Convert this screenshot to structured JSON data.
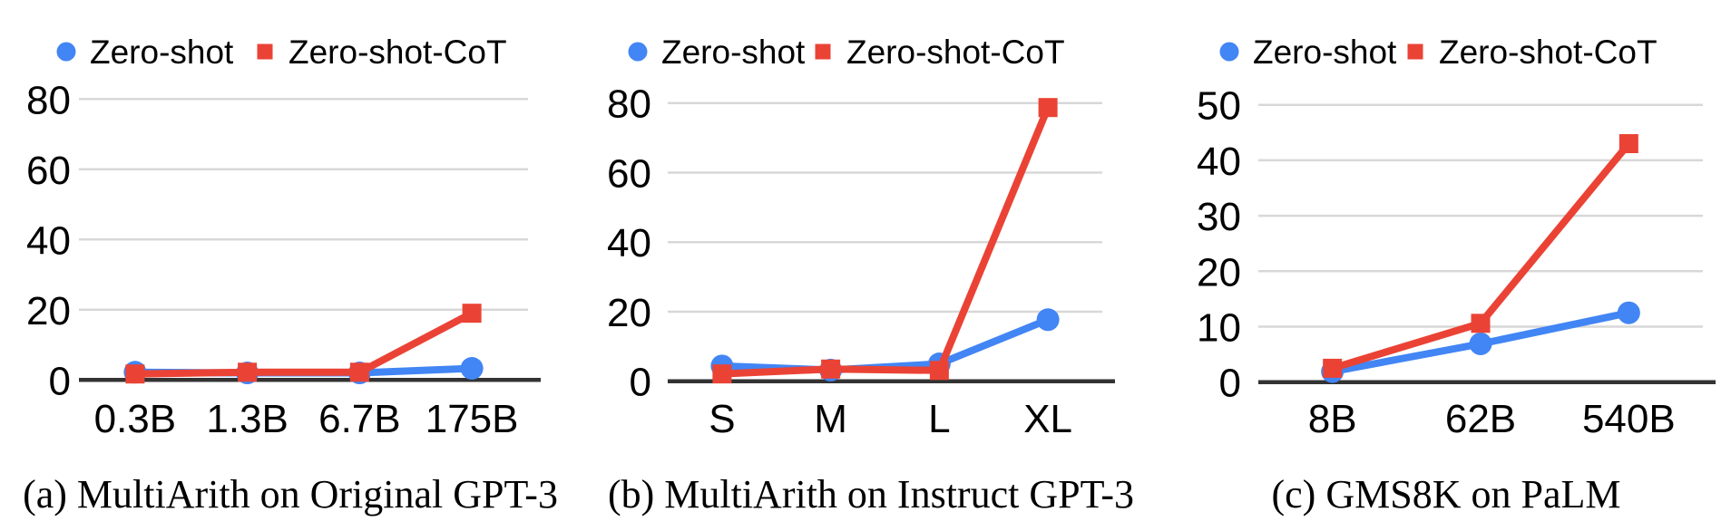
{
  "figure": {
    "colors": {
      "zero_shot": "#4285F4",
      "zero_shot_cot": "#EA4335",
      "gridline": "#D8D8D8",
      "axis": "#333333",
      "text": "#000000"
    }
  },
  "chart_data": [
    {
      "type": "line",
      "caption": "(a) MultiArith on Original GPT-3",
      "categories": [
        "0.3B",
        "1.3B",
        "6.7B",
        "175B"
      ],
      "series": [
        {
          "name": "Zero-shot",
          "marker": "circle",
          "color_key": "zero_shot",
          "values": [
            2.2,
            2.0,
            2.0,
            3.3
          ]
        },
        {
          "name": "Zero-shot-CoT",
          "marker": "square",
          "color_key": "zero_shot_cot",
          "values": [
            1.7,
            2.2,
            2.2,
            19.0
          ]
        }
      ],
      "ylim": [
        0,
        80
      ],
      "yticks": [
        0,
        20,
        40,
        60,
        80
      ],
      "grid": true,
      "legend_position": "top"
    },
    {
      "type": "line",
      "caption": "(b) MultiArith on Instruct GPT-3",
      "categories": [
        "S",
        "M",
        "L",
        "XL"
      ],
      "series": [
        {
          "name": "Zero-shot",
          "marker": "circle",
          "color_key": "zero_shot",
          "values": [
            4.4,
            3.2,
            5.0,
            17.7
          ]
        },
        {
          "name": "Zero-shot-CoT",
          "marker": "square",
          "color_key": "zero_shot_cot",
          "values": [
            2.1,
            3.5,
            3.1,
            78.7
          ]
        }
      ],
      "ylim": [
        0,
        80
      ],
      "yticks": [
        0,
        20,
        40,
        60,
        80
      ],
      "grid": true,
      "legend_position": "top"
    },
    {
      "type": "line",
      "caption": "(c) GMS8K on PaLM",
      "categories": [
        "8B",
        "62B",
        "540B"
      ],
      "series": [
        {
          "name": "Zero-shot",
          "marker": "circle",
          "color_key": "zero_shot",
          "values": [
            1.9,
            6.9,
            12.5
          ]
        },
        {
          "name": "Zero-shot-CoT",
          "marker": "square",
          "color_key": "zero_shot_cot",
          "values": [
            2.5,
            10.6,
            43.0
          ]
        }
      ],
      "ylim": [
        0,
        50
      ],
      "yticks": [
        0,
        10,
        20,
        30,
        40,
        50
      ],
      "grid": true,
      "legend_position": "top"
    }
  ]
}
